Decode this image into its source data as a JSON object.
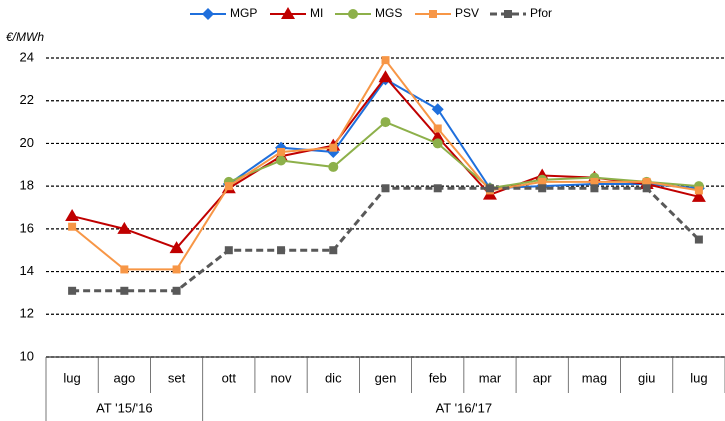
{
  "chart_data": {
    "type": "line",
    "y_unit": "€/MWh",
    "categories": [
      "lug",
      "ago",
      "set",
      "ott",
      "nov",
      "dic",
      "gen",
      "feb",
      "mar",
      "apr",
      "mag",
      "giu",
      "lug"
    ],
    "groups": [
      {
        "label": "AT '15/'16",
        "span": 3
      },
      {
        "label": "AT '16/'17",
        "span": 10
      }
    ],
    "series": [
      {
        "name": "MGP",
        "color": "#1f6fdc",
        "marker": "diamond",
        "dashed": false,
        "values": [
          null,
          null,
          null,
          18.1,
          19.8,
          19.6,
          23.0,
          21.6,
          17.9,
          18.0,
          18.1,
          18.1,
          17.9
        ]
      },
      {
        "name": "MI",
        "color": "#c00000",
        "marker": "triangle",
        "dashed": false,
        "values": [
          16.6,
          16.0,
          15.1,
          17.9,
          19.4,
          19.9,
          23.1,
          20.3,
          17.6,
          18.5,
          18.4,
          18.1,
          17.5
        ]
      },
      {
        "name": "MGS",
        "color": "#8db04a",
        "marker": "circle",
        "dashed": false,
        "values": [
          null,
          null,
          null,
          18.2,
          19.2,
          18.9,
          21.0,
          20.0,
          17.9,
          18.3,
          18.4,
          18.2,
          18.0
        ]
      },
      {
        "name": "PSV",
        "color": "#f79646",
        "marker": "square",
        "dashed": false,
        "values": [
          16.1,
          14.1,
          14.1,
          18.0,
          19.6,
          19.8,
          23.9,
          20.7,
          17.8,
          18.2,
          18.2,
          18.2,
          17.8
        ]
      },
      {
        "name": "Pfor",
        "color": "#595959",
        "marker": "square",
        "dashed": true,
        "values": [
          13.1,
          13.1,
          13.1,
          15.0,
          15.0,
          15.0,
          17.9,
          17.9,
          17.9,
          17.9,
          17.9,
          17.9,
          15.5
        ]
      }
    ],
    "ylim": [
      10,
      24
    ],
    "yticks": [
      10,
      12,
      14,
      16,
      18,
      20,
      22,
      24
    ],
    "grid": true,
    "legend": "top"
  }
}
